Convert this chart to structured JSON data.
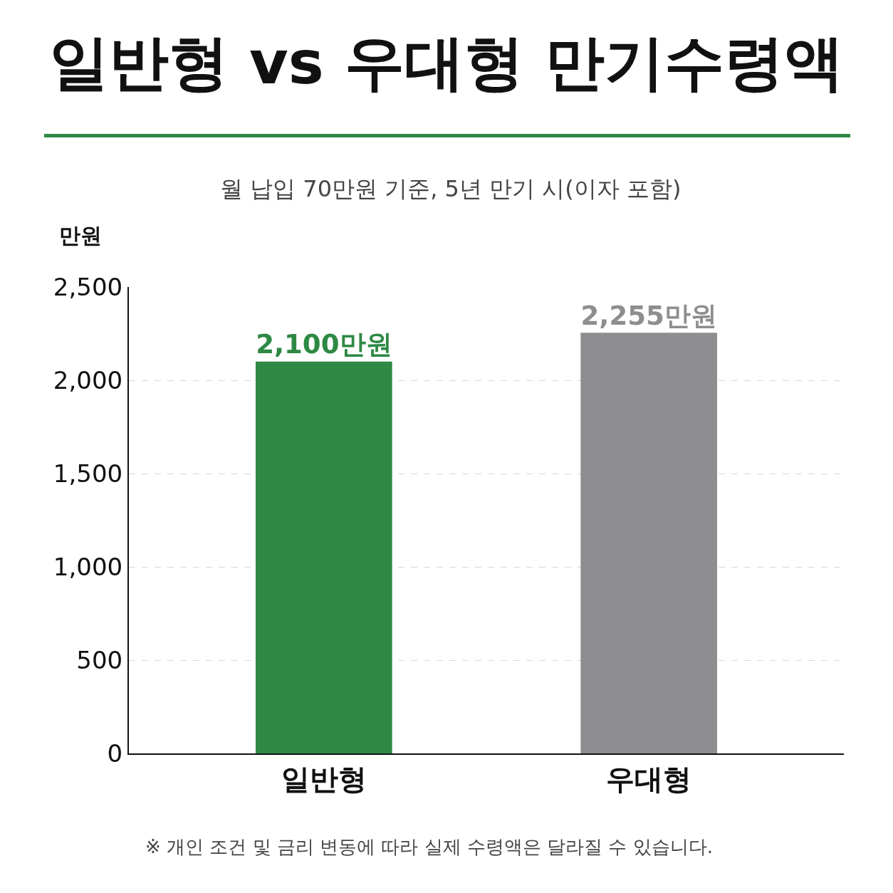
{
  "chart_data": {
    "type": "bar",
    "title": "일반형 vs 우대형 만기수령액",
    "subtitle": "월 납입 70만원 기준, 5년 만기 시(이자 포함)",
    "ylabel": "만원",
    "categories": [
      "일반형",
      "우대형"
    ],
    "values": [
      2100,
      2255
    ],
    "colors": [
      "#2e8944",
      "#8e8e90"
    ],
    "value_labels": [
      "2,100만원",
      "2,255만원"
    ],
    "ylim": [
      0,
      2500
    ],
    "yticks": [
      0,
      {
        "value": 500,
        "label": "500"
      },
      {
        "value": 1000,
        "label": "1,000"
      },
      {
        "value": 1500,
        "label": "1,500"
      },
      {
        "value": 2000,
        "label": "2,000"
      },
      {
        "value": 2500,
        "label": "2,500"
      }
    ],
    "grid": "y",
    "legend": false,
    "annotations": [
      "※ 개인 조건 및 금리 변동에 따라 실제 수령액은 달라질 수 있습니다."
    ]
  }
}
